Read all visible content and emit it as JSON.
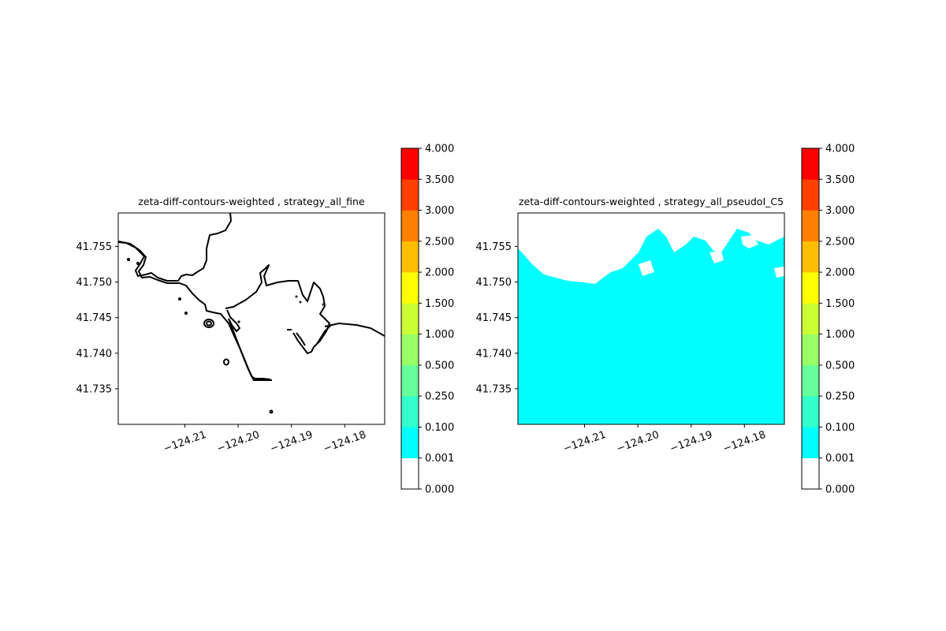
{
  "chart_data": [
    {
      "type": "heatmap",
      "title": "zeta-diff-contours-weighted , strategy_all_fine",
      "xlim": [
        -124.2225,
        -124.1725
      ],
      "ylim": [
        41.73,
        41.7597
      ],
      "xticks": [
        -124.21,
        -124.2,
        -124.19,
        -124.18
      ],
      "xtick_labels": [
        "−124.21",
        "−124.20",
        "−124.19",
        "−124.18"
      ],
      "yticks": [
        41.735,
        41.74,
        41.745,
        41.75,
        41.755
      ],
      "ytick_labels": [
        "41.735",
        "41.740",
        "41.745",
        "41.750",
        "41.755"
      ],
      "fill": "none",
      "colorbar": {
        "levels": [
          0.0,
          0.001,
          0.1,
          0.25,
          0.5,
          1.0,
          1.5,
          2.0,
          2.5,
          3.0,
          3.5,
          4.0
        ],
        "level_labels": [
          "0.000",
          "0.001",
          "0.100",
          "0.250",
          "0.500",
          "1.000",
          "1.500",
          "2.000",
          "2.500",
          "3.000",
          "3.500",
          "4.000"
        ],
        "colors": [
          "#ffffff",
          "#00ffff",
          "#33ffcc",
          "#66ff99",
          "#99ff66",
          "#ccff33",
          "#ffff00",
          "#ffbf00",
          "#ff8000",
          "#ff4000",
          "#ff0000"
        ]
      }
    },
    {
      "type": "heatmap",
      "title": "zeta-diff-contours-weighted , strategy_all_pseudoI_C5",
      "xlim": [
        -124.2225,
        -124.1725
      ],
      "ylim": [
        41.73,
        41.7597
      ],
      "xticks": [
        -124.21,
        -124.2,
        -124.19,
        -124.18
      ],
      "xtick_labels": [
        "−124.21",
        "−124.20",
        "−124.19",
        "−124.18"
      ],
      "yticks": [
        41.735,
        41.74,
        41.745,
        41.75,
        41.755
      ],
      "ytick_labels": [
        "41.735",
        "41.740",
        "41.745",
        "41.750",
        "41.755"
      ],
      "fill": "mostly 0.001–0.100 band (cyan) except land to the north",
      "colorbar": {
        "levels": [
          0.0,
          0.001,
          0.1,
          0.25,
          0.5,
          1.0,
          1.5,
          2.0,
          2.5,
          3.0,
          3.5,
          4.0
        ],
        "level_labels": [
          "0.000",
          "0.001",
          "0.100",
          "0.250",
          "0.500",
          "1.000",
          "1.500",
          "2.000",
          "2.500",
          "3.000",
          "3.500",
          "4.000"
        ],
        "colors": [
          "#ffffff",
          "#00ffff",
          "#33ffcc",
          "#66ff99",
          "#99ff66",
          "#ccff33",
          "#ffff00",
          "#ffbf00",
          "#ff8000",
          "#ff4000",
          "#ff0000"
        ]
      }
    }
  ]
}
